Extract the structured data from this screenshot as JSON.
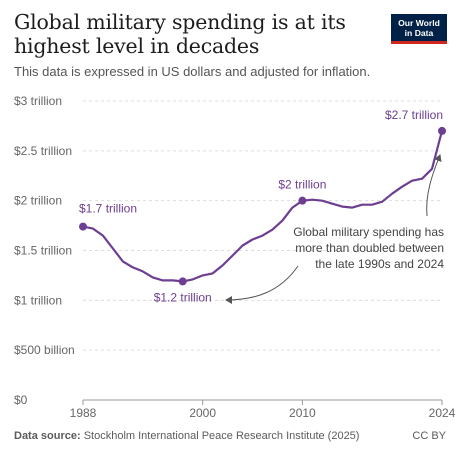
{
  "title": "Global military spending is at its highest level in decades",
  "subtitle": "This data is expressed in US dollars and adjusted for inflation.",
  "logo": {
    "line1": "Our World",
    "line2": "in Data"
  },
  "footer": {
    "source_label": "Data source:",
    "source_text": "Stockholm International Peace Research Institute (2025)",
    "license": "CC BY"
  },
  "colors": {
    "series": "#6d3e91",
    "grid": "#dddddd",
    "text": "#666666",
    "annotation": "#555555"
  },
  "chart_data": {
    "type": "line",
    "ylim": [
      0,
      3
    ],
    "xlim": [
      1988,
      2024
    ],
    "y_ticks": [
      {
        "value": 0,
        "label": "$0"
      },
      {
        "value": 0.5,
        "label": "$500 billion"
      },
      {
        "value": 1,
        "label": "$1 trillion"
      },
      {
        "value": 1.5,
        "label": "$1.5 trillion"
      },
      {
        "value": 2,
        "label": "$2 trillion"
      },
      {
        "value": 2.5,
        "label": "$2.5 trillion"
      },
      {
        "value": 3,
        "label": "$3 trillion"
      }
    ],
    "x_ticks": [
      {
        "value": 1988,
        "label": "1988"
      },
      {
        "value": 2000,
        "label": "2000"
      },
      {
        "value": 2010,
        "label": "2010"
      },
      {
        "value": 2024,
        "label": "2024"
      }
    ],
    "grid": "horizontal dashed",
    "series": [
      {
        "x": [
          1988,
          1989,
          1990,
          1991,
          1992,
          1993,
          1994,
          1995,
          1996,
          1997,
          1998,
          1999,
          2000,
          2001,
          2002,
          2003,
          2004,
          2005,
          2006,
          2007,
          2008,
          2009,
          2010,
          2011,
          2012,
          2013,
          2014,
          2015,
          2016,
          2017,
          2018,
          2019,
          2020,
          2021,
          2022,
          2023,
          2024
        ],
        "y": [
          1.74,
          1.72,
          1.65,
          1.52,
          1.39,
          1.33,
          1.29,
          1.23,
          1.2,
          1.2,
          1.19,
          1.21,
          1.25,
          1.27,
          1.35,
          1.45,
          1.55,
          1.61,
          1.65,
          1.71,
          1.8,
          1.93,
          2.0,
          2.01,
          2.0,
          1.97,
          1.94,
          1.93,
          1.96,
          1.96,
          1.99,
          2.07,
          2.14,
          2.2,
          2.22,
          2.32,
          2.7
        ]
      }
    ],
    "highlight_points": [
      {
        "x": 1988,
        "y": 1.74,
        "label": "$1.7 trillion"
      },
      {
        "x": 1998,
        "y": 1.19,
        "label": "$1.2 trillion"
      },
      {
        "x": 2010,
        "y": 2.0,
        "label": "$2 trillion"
      },
      {
        "x": 2024,
        "y": 2.7,
        "label": "$2.7 trillion"
      }
    ],
    "annotation": {
      "lines": [
        "Global military spending has",
        "more than doubled between",
        "the late 1990s and 2024"
      ]
    }
  }
}
